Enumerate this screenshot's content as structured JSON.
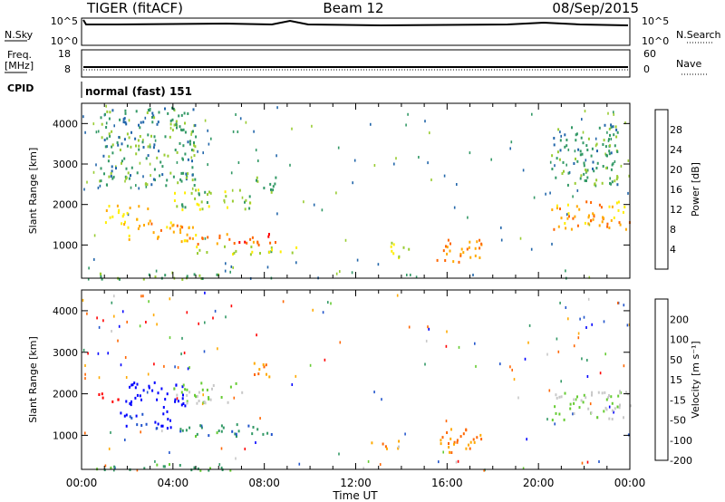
{
  "header": {
    "station": "TIGER (fitACF)",
    "beam": "Beam 12",
    "date": "08/Sep/2015"
  },
  "panels": {
    "nsky_label": "N.Sky",
    "nsky_ticks": [
      "10^5",
      "10^0"
    ],
    "nsearch_label": "N.Search",
    "nsearch_ticks": [
      "10^5",
      "10^0"
    ],
    "freq_label": "Freq.",
    "freq_unit": "[MHz]",
    "freq_ticks": [
      "18",
      "8"
    ],
    "nave_label": "Nave",
    "nave_ticks": [
      "60",
      "0"
    ],
    "cpid_label": "CPID",
    "cpid_value": "normal (fast) 151"
  },
  "chart_data": [
    {
      "type": "heatmap",
      "name": "power",
      "xlabel": "Time UT",
      "ylabel": "Slant Range [km]",
      "x_ticks": [
        "00:00",
        "04:00",
        "08:00",
        "12:00",
        "16:00",
        "20:00",
        "00:00"
      ],
      "y_ticks": [
        1000,
        2000,
        3000,
        4000
      ],
      "ylim": [
        180,
        4500
      ],
      "colorbar": {
        "label": "Power [dB]",
        "ticks": [
          "28",
          "24",
          "20",
          "16",
          "12",
          "8",
          "4"
        ],
        "colors": [
          "#ff0000",
          "#ff6600",
          "#ffaa00",
          "#ffee00",
          "#99cc33",
          "#339966",
          "#2266aa",
          "#0000ff"
        ]
      },
      "regions": [
        {
          "t": [
            0.6,
            6.5
          ],
          "r": [
            180,
            330
          ],
          "v": 8
        },
        {
          "t": [
            1.0,
            3.0
          ],
          "r": [
            1500,
            2000
          ],
          "v": 16
        },
        {
          "t": [
            2.0,
            5.0
          ],
          "r": [
            1100,
            1600
          ],
          "v": 18
        },
        {
          "t": [
            5.0,
            8.5
          ],
          "r": [
            1000,
            1300
          ],
          "v": 22
        },
        {
          "t": [
            4.0,
            7.5
          ],
          "r": [
            1900,
            2400
          ],
          "v": 10
        },
        {
          "t": [
            7.5,
            8.5
          ],
          "r": [
            2300,
            2800
          ],
          "v": 8
        },
        {
          "t": [
            5.0,
            9.5
          ],
          "r": [
            800,
            1000
          ],
          "v": 10
        },
        {
          "t": [
            13.5,
            14.5
          ],
          "r": [
            700,
            1100
          ],
          "v": 12
        },
        {
          "t": [
            15.5,
            17.5
          ],
          "r": [
            600,
            1200
          ],
          "v": 20
        },
        {
          "t": [
            20.5,
            24.0
          ],
          "r": [
            1400,
            2100
          ],
          "v": 18
        },
        {
          "t": [
            0.8,
            5.0
          ],
          "r": [
            2500,
            4400
          ],
          "v": 6
        },
        {
          "t": [
            20.5,
            23.5
          ],
          "r": [
            2500,
            4000
          ],
          "v": 6
        }
      ]
    },
    {
      "type": "heatmap",
      "name": "velocity",
      "xlabel": "Time UT",
      "ylabel": "Slant Range [km]",
      "x_ticks": [
        "00:00",
        "04:00",
        "08:00",
        "12:00",
        "16:00",
        "20:00",
        "00:00"
      ],
      "y_ticks": [
        1000,
        2000,
        3000,
        4000
      ],
      "ylim": [
        180,
        4500
      ],
      "colorbar": {
        "label": "Velocity [m s⁻¹]",
        "ticks": [
          "200",
          "100",
          "50",
          "15",
          "-15",
          "-50",
          "-100",
          "-200"
        ],
        "colors": [
          "#0000ff",
          "#2255cc",
          "#339966",
          "#66cc33",
          "#c8c8c8",
          "#ffaa00",
          "#ff6600",
          "#ff0000"
        ]
      },
      "regions": [
        {
          "t": [
            0.7,
            1.6
          ],
          "r": [
            1800,
            2100
          ],
          "v": -200
        },
        {
          "t": [
            1.8,
            4.5
          ],
          "r": [
            1700,
            2300
          ],
          "v": 200
        },
        {
          "t": [
            1.5,
            4.0
          ],
          "r": [
            1200,
            1600
          ],
          "v": 150
        },
        {
          "t": [
            4.0,
            7.0
          ],
          "r": [
            1800,
            2300
          ],
          "v": 0
        },
        {
          "t": [
            4.0,
            8.5
          ],
          "r": [
            1000,
            1300
          ],
          "v": 60
        },
        {
          "t": [
            7.5,
            8.5
          ],
          "r": [
            2400,
            2800
          ],
          "v": -80
        },
        {
          "t": [
            12.5,
            14.0
          ],
          "r": [
            700,
            900
          ],
          "v": -60
        },
        {
          "t": [
            15.5,
            17.5
          ],
          "r": [
            600,
            1200
          ],
          "v": -80
        },
        {
          "t": [
            20.5,
            24.0
          ],
          "r": [
            1400,
            2100
          ],
          "v": 0
        },
        {
          "t": [
            0.6,
            6.5
          ],
          "r": [
            180,
            330
          ],
          "v": 30
        }
      ]
    }
  ]
}
